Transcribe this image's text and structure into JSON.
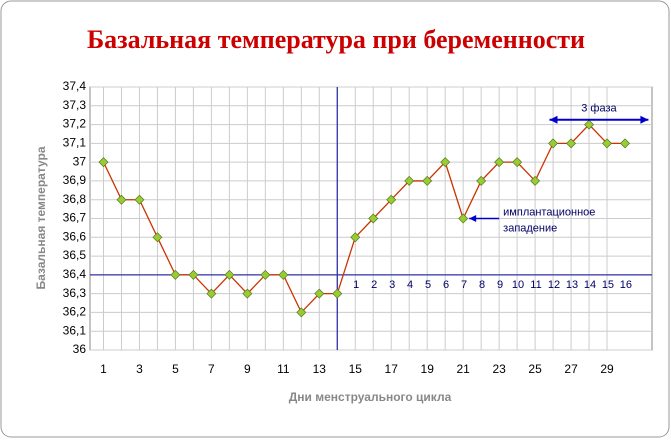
{
  "chart_data": {
    "type": "line",
    "title": "Базальная температура при беременности",
    "x_label": "Дни менструального цикла",
    "y_label": "Базальная температура",
    "x": [
      1,
      2,
      3,
      4,
      5,
      6,
      7,
      8,
      9,
      10,
      11,
      12,
      13,
      14,
      15,
      16,
      17,
      18,
      19,
      20,
      21,
      22,
      23,
      24,
      25,
      26,
      27,
      28,
      29,
      30
    ],
    "series": [
      {
        "color": "#cc3300",
        "marker_color": "#99cc33",
        "values": [
          37.0,
          36.8,
          36.8,
          36.6,
          36.4,
          36.4,
          36.3,
          36.4,
          36.3,
          36.4,
          36.4,
          36.2,
          36.3,
          36.3,
          36.6,
          36.7,
          36.8,
          36.9,
          36.9,
          37.0,
          36.7,
          36.9,
          37.0,
          37.0,
          36.9,
          37.1,
          37.1,
          37.2,
          37.1,
          37.1
        ]
      }
    ],
    "xlim": [
      0.25,
      31.5
    ],
    "xticks": [
      1,
      3,
      5,
      7,
      9,
      11,
      13,
      15,
      17,
      19,
      21,
      23,
      25,
      27,
      29
    ],
    "ylim": [
      36,
      37.4
    ],
    "yticks": [
      36,
      {
        "value": 36.1,
        "label": "36,1"
      },
      {
        "value": 36.2,
        "label": "36,2"
      },
      {
        "value": 36.3,
        "label": "36,3"
      },
      {
        "value": 36.4,
        "label": "36,4"
      },
      {
        "value": 36.5,
        "label": "36,5"
      },
      {
        "value": 36.6,
        "label": "36,6"
      },
      {
        "value": 36.7,
        "label": "36,7"
      },
      {
        "value": 36.8,
        "label": "36,8"
      },
      {
        "value": 36.9,
        "label": "36,9"
      },
      37,
      {
        "value": 37.1,
        "label": "37,1"
      },
      {
        "value": 37.2,
        "label": "37,2"
      },
      {
        "value": 37.3,
        "label": "37,3"
      },
      {
        "value": 37.4,
        "label": "37,4"
      }
    ],
    "grid": true,
    "vline": 14,
    "hline": 36.4,
    "ref_color": "#3333aa",
    "phase_days": [
      1,
      2,
      3,
      4,
      5,
      6,
      7,
      8,
      9,
      10,
      11,
      12,
      13,
      14,
      15,
      16
    ],
    "annotations": [
      "3 фаза",
      "имплантационное",
      "западение"
    ]
  }
}
